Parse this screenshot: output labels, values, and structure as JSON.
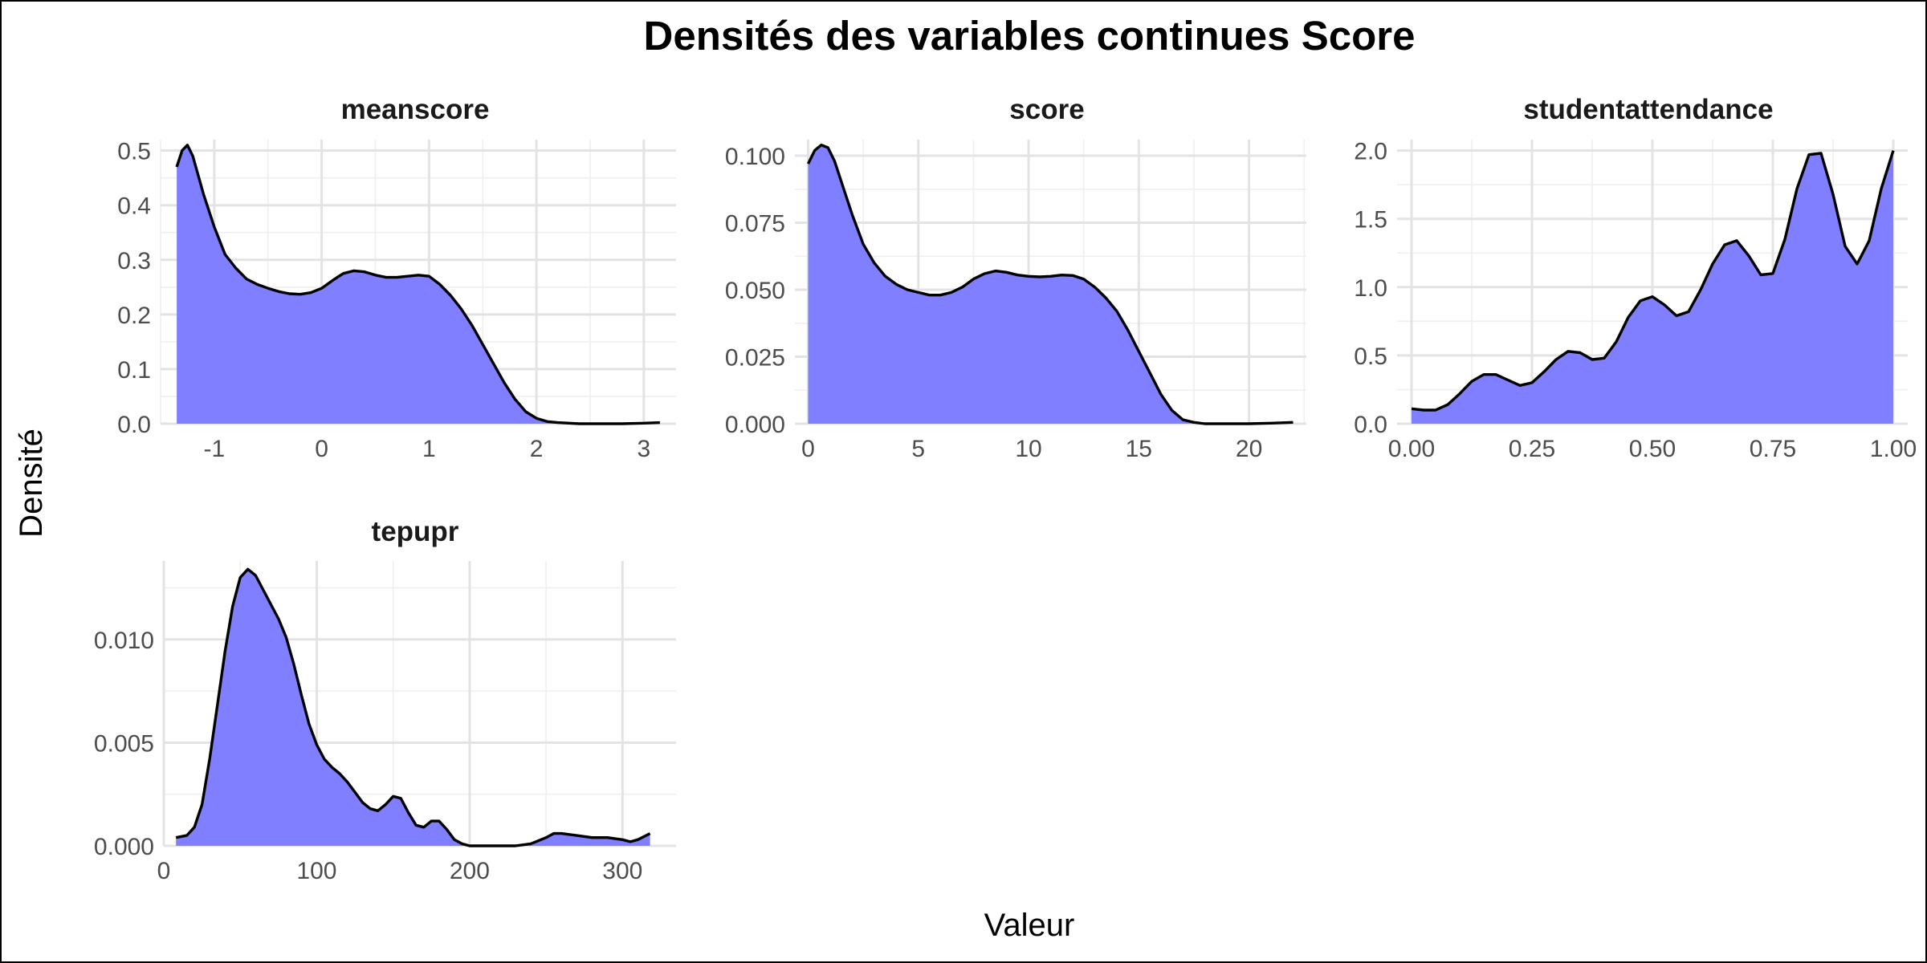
{
  "title": "Densités des variables continues Score",
  "xlabel": "Valeur",
  "ylabel": "Densité",
  "colors": {
    "fill": "#7f7fff",
    "line": "#000000",
    "grid": "#e3e3e3"
  },
  "chart_data": [
    {
      "type": "area",
      "title": "meanscore",
      "xlim": [
        -1.5,
        3.3
      ],
      "ylim": [
        0,
        0.52
      ],
      "x_ticks": [
        -1,
        0,
        1,
        2,
        3
      ],
      "x_tick_labels": [
        "-1",
        "0",
        "1",
        "2",
        "3"
      ],
      "y_ticks": [
        0,
        0.1,
        0.2,
        0.3,
        0.4,
        0.5
      ],
      "y_tick_labels": [
        "0.0",
        "0.1",
        "0.2",
        "0.3",
        "0.4",
        "0.5"
      ],
      "x": [
        -1.35,
        -1.3,
        -1.25,
        -1.2,
        -1.1,
        -1.0,
        -0.9,
        -0.8,
        -0.7,
        -0.6,
        -0.5,
        -0.4,
        -0.3,
        -0.2,
        -0.1,
        0.0,
        0.1,
        0.2,
        0.3,
        0.4,
        0.5,
        0.6,
        0.7,
        0.8,
        0.9,
        1.0,
        1.1,
        1.2,
        1.3,
        1.4,
        1.5,
        1.6,
        1.7,
        1.8,
        1.9,
        2.0,
        2.1,
        2.2,
        2.4,
        2.6,
        2.8,
        3.0,
        3.15
      ],
      "y": [
        0.47,
        0.5,
        0.51,
        0.49,
        0.42,
        0.36,
        0.31,
        0.285,
        0.265,
        0.255,
        0.248,
        0.242,
        0.238,
        0.237,
        0.24,
        0.248,
        0.262,
        0.275,
        0.28,
        0.278,
        0.272,
        0.268,
        0.268,
        0.27,
        0.272,
        0.27,
        0.255,
        0.235,
        0.21,
        0.18,
        0.145,
        0.11,
        0.075,
        0.045,
        0.022,
        0.01,
        0.004,
        0.002,
        0.0,
        0.0,
        0.0,
        0.001,
        0.002
      ]
    },
    {
      "type": "area",
      "title": "score",
      "xlim": [
        -0.6,
        22.6
      ],
      "ylim": [
        0,
        0.106
      ],
      "x_ticks": [
        0,
        5,
        10,
        15,
        20
      ],
      "x_tick_labels": [
        "0",
        "5",
        "10",
        "15",
        "20"
      ],
      "y_ticks": [
        0,
        0.025,
        0.05,
        0.075,
        0.1
      ],
      "y_tick_labels": [
        "0.000",
        "0.025",
        "0.050",
        "0.075",
        "0.100"
      ],
      "x": [
        0.0,
        0.3,
        0.6,
        0.9,
        1.2,
        1.6,
        2.0,
        2.5,
        3.0,
        3.5,
        4.0,
        4.5,
        5.0,
        5.5,
        6.0,
        6.5,
        7.0,
        7.5,
        8.0,
        8.5,
        9.0,
        9.5,
        10.0,
        10.5,
        11.0,
        11.5,
        12.0,
        12.5,
        13.0,
        13.5,
        14.0,
        14.5,
        15.0,
        15.5,
        16.0,
        16.5,
        17.0,
        17.5,
        18.0,
        19.0,
        20.0,
        21.0,
        22.0
      ],
      "y": [
        0.097,
        0.102,
        0.104,
        0.103,
        0.098,
        0.088,
        0.078,
        0.067,
        0.06,
        0.055,
        0.052,
        0.05,
        0.049,
        0.048,
        0.048,
        0.049,
        0.051,
        0.054,
        0.056,
        0.057,
        0.0565,
        0.0555,
        0.055,
        0.0548,
        0.055,
        0.0555,
        0.0553,
        0.054,
        0.051,
        0.047,
        0.042,
        0.035,
        0.027,
        0.019,
        0.011,
        0.005,
        0.0015,
        0.0005,
        0.0,
        0.0,
        0.0,
        0.0002,
        0.0005
      ]
    },
    {
      "type": "area",
      "title": "studentattendance",
      "xlim": [
        -0.03,
        1.03
      ],
      "ylim": [
        0,
        2.08
      ],
      "x_ticks": [
        0,
        0.25,
        0.5,
        0.75,
        1.0
      ],
      "x_tick_labels": [
        "0.00",
        "0.25",
        "0.50",
        "0.75",
        "1.00"
      ],
      "y_ticks": [
        0,
        0.5,
        1.0,
        1.5,
        2.0
      ],
      "y_tick_labels": [
        "0.0",
        "0.5",
        "1.0",
        "1.5",
        "2.0"
      ],
      "x": [
        0.0,
        0.025,
        0.05,
        0.075,
        0.1,
        0.125,
        0.15,
        0.175,
        0.2,
        0.225,
        0.25,
        0.275,
        0.3,
        0.325,
        0.35,
        0.375,
        0.4,
        0.425,
        0.45,
        0.475,
        0.5,
        0.525,
        0.55,
        0.575,
        0.6,
        0.625,
        0.65,
        0.675,
        0.7,
        0.725,
        0.75,
        0.775,
        0.8,
        0.825,
        0.85,
        0.875,
        0.9,
        0.925,
        0.95,
        0.975,
        1.0
      ],
      "y": [
        0.11,
        0.1,
        0.1,
        0.14,
        0.22,
        0.31,
        0.36,
        0.36,
        0.32,
        0.28,
        0.3,
        0.38,
        0.47,
        0.53,
        0.52,
        0.47,
        0.48,
        0.6,
        0.78,
        0.9,
        0.93,
        0.87,
        0.79,
        0.82,
        0.98,
        1.17,
        1.31,
        1.34,
        1.23,
        1.09,
        1.1,
        1.35,
        1.72,
        1.97,
        1.98,
        1.68,
        1.3,
        1.17,
        1.34,
        1.72,
        2.0
      ]
    },
    {
      "type": "area",
      "title": "tepupr",
      "xlim": [
        0,
        335
      ],
      "ylim": [
        0,
        0.0138
      ],
      "x_ticks": [
        0,
        100,
        200,
        300
      ],
      "x_tick_labels": [
        "0",
        "100",
        "200",
        "300"
      ],
      "y_ticks": [
        0,
        0.005,
        0.01
      ],
      "y_tick_labels": [
        "0.000",
        "0.005",
        "0.010"
      ],
      "x": [
        8,
        15,
        20,
        25,
        30,
        35,
        40,
        45,
        50,
        55,
        60,
        65,
        70,
        75,
        80,
        85,
        90,
        95,
        100,
        105,
        110,
        115,
        120,
        125,
        130,
        135,
        140,
        145,
        150,
        155,
        160,
        165,
        170,
        175,
        180,
        185,
        190,
        195,
        200,
        210,
        220,
        230,
        240,
        250,
        255,
        260,
        270,
        280,
        290,
        300,
        305,
        310,
        318
      ],
      "y": [
        0.0004,
        0.0005,
        0.0009,
        0.002,
        0.0042,
        0.0068,
        0.0094,
        0.0116,
        0.013,
        0.0134,
        0.0131,
        0.0124,
        0.0117,
        0.011,
        0.0101,
        0.0088,
        0.0073,
        0.0059,
        0.0049,
        0.0042,
        0.0038,
        0.0035,
        0.0031,
        0.0026,
        0.0021,
        0.0018,
        0.0017,
        0.002,
        0.0024,
        0.0023,
        0.0016,
        0.001,
        0.0009,
        0.0012,
        0.0012,
        0.0008,
        0.0003,
        0.0001,
        0.0,
        0.0,
        0.0,
        0.0,
        0.0001,
        0.0004,
        0.0006,
        0.0006,
        0.0005,
        0.0004,
        0.0004,
        0.0003,
        0.0002,
        0.0003,
        0.0006
      ]
    }
  ]
}
